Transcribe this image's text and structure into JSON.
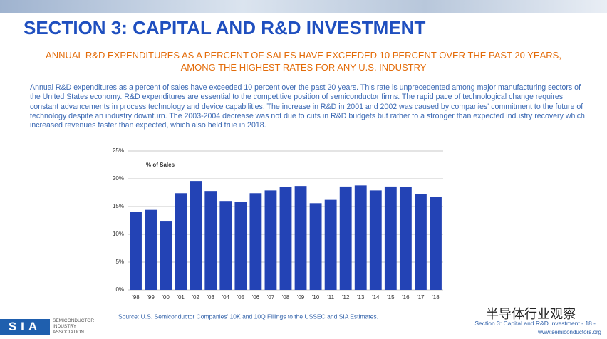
{
  "slide": {
    "title": "SECTION 3: CAPITAL AND R&D INVESTMENT",
    "subtitle": "ANNUAL R&D EXPENDITURES AS A PERCENT OF SALES HAVE EXCEEDED 10 PERCENT OVER THE PAST 20 YEARS, AMONG THE HIGHEST RATES FOR ANY U.S. INDUSTRY",
    "body": "Annual R&D expenditures as a percent of sales have exceeded 10 percent over the past 20 years.  This rate is unprecedented among major manufacturing sectors of the United States economy. R&D expenditures are essential to the competitive position of semiconductor firms.  The rapid pace of technological change requires constant advancements in process technology and device capabilities.  The increase in R&D in 2001 and 2002 was caused by companies' commitment to the future of technology despite an industry downturn.  The 2003-2004 decrease was not due to cuts in R&D budgets but rather to a stronger than expected industry recovery which increased revenues faster than expected, which also held true in 2018.",
    "footer": "Section 3: Capital and R&D Investment  - 18 -",
    "url": "www.semiconductors.org",
    "logo": "SIA",
    "logo_text": "SEMICONDUCTOR INDUSTRY ASSOCIATION",
    "watermark": "半导体行业观察"
  },
  "chart_data": {
    "type": "bar",
    "y_label": "% of Sales",
    "source": "Source: U.S. Semiconductor Companies' 10K and 10Q Fillings to the USSEC and SIA Estimates.",
    "categories": [
      "'98",
      "'99",
      "'00",
      "'01",
      "'02",
      "'03",
      "'04",
      "'05",
      "'06",
      "'07",
      "'08",
      "'09",
      "'10",
      "'11",
      "'12",
      "'13",
      "'14",
      "'15",
      "'16",
      "'17",
      "'18"
    ],
    "values": [
      14.0,
      14.4,
      12.3,
      17.4,
      19.6,
      17.8,
      16.0,
      15.8,
      17.4,
      17.9,
      18.5,
      18.7,
      15.6,
      16.2,
      18.6,
      18.8,
      17.9,
      18.6,
      18.5,
      17.3,
      16.7
    ],
    "color": "#2343b5",
    "ylim": [
      0,
      25
    ],
    "yticks": [
      {
        "value": 0,
        "label": "0%"
      },
      {
        "value": 5,
        "label": "5%"
      },
      {
        "value": 10,
        "label": "10%"
      },
      {
        "value": 15,
        "label": "15%"
      },
      {
        "value": 20,
        "label": "20%"
      },
      {
        "value": 25,
        "label": "25%"
      }
    ],
    "grid": true
  }
}
